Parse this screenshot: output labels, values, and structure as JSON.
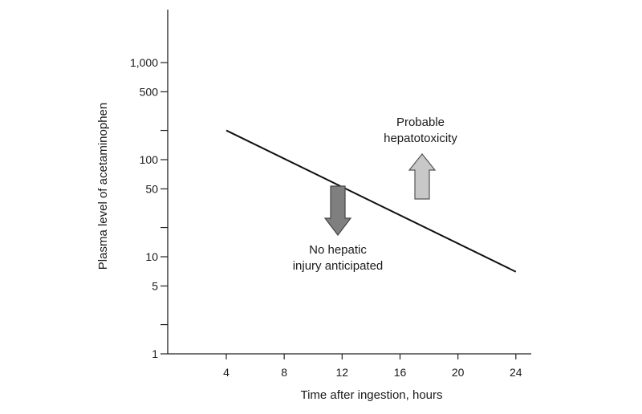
{
  "chart_data": {
    "type": "line",
    "title": "",
    "xlabel": "Time after ingestion, hours",
    "ylabel": "Plasma level of acetaminophen",
    "y_scale": "log",
    "xlim": [
      0,
      25
    ],
    "ylim": [
      1,
      2000
    ],
    "x_ticks": [
      4,
      8,
      12,
      16,
      20,
      24
    ],
    "x_tick_labels": [
      "4",
      "8",
      "12",
      "16",
      "20",
      "24"
    ],
    "y_ticks": [
      1,
      5,
      10,
      50,
      100,
      500,
      1000
    ],
    "y_tick_labels": [
      "1",
      "5",
      "10",
      "50",
      "100",
      "500",
      "1,000"
    ],
    "y_minor_ticks": [
      2,
      20,
      200
    ],
    "grid": false,
    "series": [
      {
        "x": [
          4,
          24
        ],
        "y": [
          200,
          7
        ]
      }
    ],
    "annotations": [
      {
        "lines": [
          "Probable",
          "hepatotoxicity"
        ],
        "arrow": "up",
        "color": "#c8c8c8"
      },
      {
        "lines": [
          "No hepatic",
          "injury anticipated"
        ],
        "arrow": "down",
        "color": "#7f7f7f"
      }
    ]
  }
}
